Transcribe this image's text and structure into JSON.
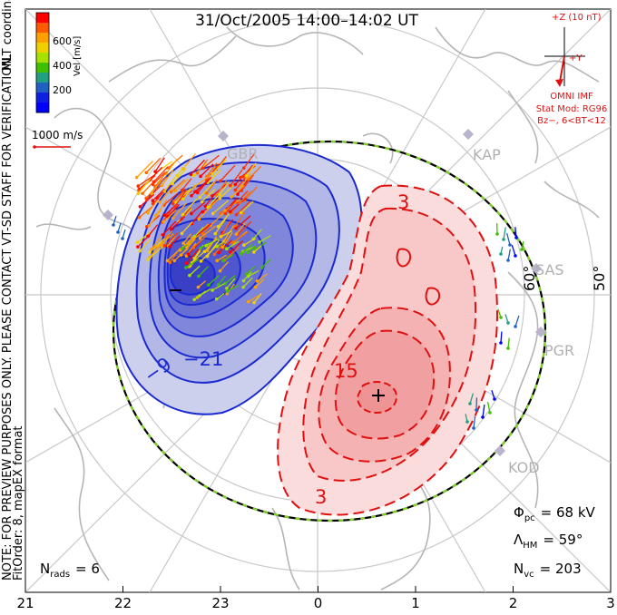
{
  "title": "31/Oct/2005 14:00–14:02 UT",
  "mlt_label": "MLT coordinates",
  "colorbar": {
    "label": "Vel [m/s]",
    "ticks": [
      "600",
      "400",
      "200"
    ],
    "colors": [
      "#ff0000",
      "#ff5a00",
      "#ffa000",
      "#f0d000",
      "#a8e000",
      "#40c000",
      "#20a080",
      "#2060c0",
      "#1020e0",
      "#0000ff"
    ]
  },
  "velocity_scale": "1000 m/s",
  "imf": {
    "z_label": "+Z (10 nT)",
    "y_label": "+Y",
    "source": "OMNI IMF",
    "model": "Stat Mod: RG96",
    "condition": "Bz−, 6<BT<12"
  },
  "notes": {
    "verification": "NOTE: FOR PREVIEW PURPOSES ONLY. PLEASE CONTACT VT-SD STAFF FOR VERIFICATION.",
    "fit": "FitOrder: 8, mapEX format"
  },
  "stations": [
    "KAP",
    "SAS",
    "PGR",
    "KOD",
    "GBR"
  ],
  "lat_labels": [
    "60°",
    "50°"
  ],
  "contours": {
    "neg_inner": "−21",
    "neg_outer": "−9",
    "pos_top": "3",
    "pos_inner": "15",
    "pos_bottom": "3"
  },
  "stats": {
    "phi_sym": "Φ",
    "phi_sub": "pc",
    "phi_value": "= 68 kV",
    "lambda_sym": "Λ",
    "lambda_sub": "HM",
    "lambda_value": "= 59°",
    "nvc_sym": "N",
    "nvc_sub": "vc",
    "nvc_value": "= 203",
    "nrads_sym": "N",
    "nrads_sub": "rads",
    "nrads_value": "= 6"
  },
  "mlt_ticks": [
    "21",
    "22",
    "23",
    "0",
    "1",
    "2",
    "3"
  ],
  "colors": {
    "negative": "#1a2ad0",
    "positive": "#e01010",
    "boundary_dash": "#7ed321",
    "land": "#b5b5b5"
  }
}
